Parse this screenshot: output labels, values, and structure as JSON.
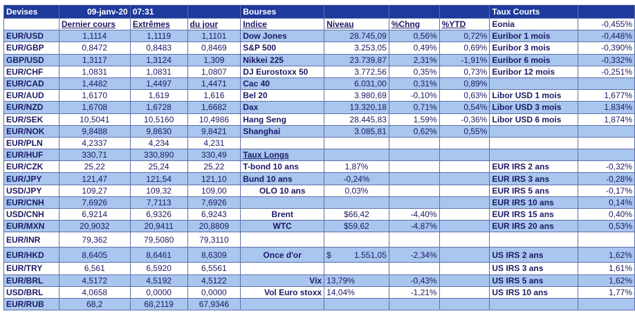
{
  "header": {
    "devises": "Devises",
    "date": "09-janv-20",
    "time": "07:31",
    "bourses": "Bourses",
    "taux_courts": "Taux Courts"
  },
  "colheads": {
    "dernier": "Dernier cours",
    "extremes": "Extrêmes",
    "du_jour": "du jour",
    "indice": "Indice",
    "niveau": "Niveau",
    "chng": "%Chng",
    "ytd": "%YTD",
    "eonia": "Eonia",
    "eonia_val": "-0,455%"
  },
  "fx": [
    {
      "pair": "EUR/USD",
      "last": "1,1114",
      "high": "1,1119",
      "low": "1,1101"
    },
    {
      "pair": "EUR/GBP",
      "last": "0,8472",
      "high": "0,8483",
      "low": "0,8469"
    },
    {
      "pair": "GBP/USD",
      "last": "1,3117",
      "high": "1,3124",
      "low": "1,309"
    },
    {
      "pair": "EUR/CHF",
      "last": "1,0831",
      "high": "1,0831",
      "low": "1,0807"
    },
    {
      "pair": "EUR/CAD",
      "last": "1,4482",
      "high": "1,4497",
      "low": "1,4471"
    },
    {
      "pair": "EUR/AUD",
      "last": "1,6170",
      "high": "1,619",
      "low": "1,616"
    },
    {
      "pair": "EUR/NZD",
      "last": "1,6708",
      "high": "1,6728",
      "low": "1,6682"
    },
    {
      "pair": "EUR/SEK",
      "last": "10,5041",
      "high": "10,5160",
      "low": "10,4986"
    },
    {
      "pair": "EUR/NOK",
      "last": "9,8488",
      "high": "9,8630",
      "low": "9,8421"
    },
    {
      "pair": "EUR/PLN",
      "last": "4,2337",
      "high": "4,234",
      "low": "4,231"
    },
    {
      "pair": "EUR/HUF",
      "last": "330,71",
      "high": "330,890",
      "low": "330,49"
    },
    {
      "pair": "EUR/CZK",
      "last": "25,22",
      "high": "25,24",
      "low": "25,22"
    },
    {
      "pair": "EUR/JPY",
      "last": "121,47",
      "high": "121,54",
      "low": "121,10"
    },
    {
      "pair": "USD/JPY",
      "last": "109,27",
      "high": "109,32",
      "low": "109,00"
    },
    {
      "pair": "EUR/CNH",
      "last": "7,6926",
      "high": "7,7113",
      "low": "7,6926"
    },
    {
      "pair": "USD/CNH",
      "last": "6,9214",
      "high": "6,9326",
      "low": "6,9243"
    },
    {
      "pair": "EUR/MXN",
      "last": "20,9032",
      "high": "20,9411",
      "low": "20,8809"
    },
    {
      "pair": "EUR/INR",
      "last": "79,362",
      "high": "79,5080",
      "low": "79,3110"
    },
    {
      "pair": "EUR/HKD",
      "last": "8,6405",
      "high": "8,6461",
      "low": "8,6309"
    },
    {
      "pair": "EUR/TRY",
      "last": "6,561",
      "high": "6,5920",
      "low": "6,5561"
    },
    {
      "pair": "EUR/BRL",
      "last": "4,5172",
      "high": "4,5192",
      "low": "4,5122"
    },
    {
      "pair": "USD/BRL",
      "last": "4,0658",
      "high": "0,0000",
      "low": "0,0000"
    },
    {
      "pair": "EUR/RUB",
      "last": "68,2",
      "high": "68,2119",
      "low": "67,9346"
    }
  ],
  "bourses": [
    {
      "name": "Dow Jones",
      "level": "28.745,09",
      "chng": "0,56%",
      "ytd": "0,72%"
    },
    {
      "name": "S&P 500",
      "level": "3.253,05",
      "chng": "0,49%",
      "ytd": "0,69%"
    },
    {
      "name": "Nikkei 225",
      "level": "23.739,87",
      "chng": "2,31%",
      "ytd": "-1,91%"
    },
    {
      "name": "DJ Eurostoxx 50",
      "level": "3.772,56",
      "chng": "0,35%",
      "ytd": "0,73%"
    },
    {
      "name": "Cac 40",
      "level": "6.031,00",
      "chng": "0,31%",
      "ytd": "0,89%"
    },
    {
      "name": "Bel 20",
      "level": "3.980,69",
      "chng": "-0,10%",
      "ytd": "0,63%"
    },
    {
      "name": "Dax",
      "level": "13.320,18",
      "chng": "0,71%",
      "ytd": "0,54%"
    },
    {
      "name": "Hang Seng",
      "level": "28.445,83",
      "chng": "1,59%",
      "ytd": "-0,36%"
    },
    {
      "name": "Shanghai",
      "level": "3.085,81",
      "chng": "0,62%",
      "ytd": "0,55%"
    }
  ],
  "taux_longs": {
    "title": "Taux Longs",
    "rows": [
      {
        "name": "T-bond 10 ans",
        "value": "1,87%"
      },
      {
        "name": "Bund 10 ans",
        "value": "-0,24%"
      },
      {
        "name": "OLO 10 ans",
        "value": "0,03%"
      }
    ]
  },
  "commodities": [
    {
      "name": "Brent",
      "value": "$66,42",
      "chng": "-4,40%"
    },
    {
      "name": "WTC",
      "value": "$59,62",
      "chng": "-4,87%"
    }
  ],
  "gold": {
    "name": "Once d'or",
    "currency": "$",
    "value": "1.551,05",
    "chng": "-2,34%"
  },
  "vol": [
    {
      "name": "Vix",
      "value": "13,79%",
      "chng": "-0,43%"
    },
    {
      "name": "Vol Euro stoxx",
      "value": "14,04%",
      "chng": "-1,21%"
    }
  ],
  "euribor": [
    {
      "name": "Euribor 1 mois",
      "value": "-0,448%"
    },
    {
      "name": "Euribor 3 mois",
      "value": "-0,390%"
    },
    {
      "name": "Euribor 6 mois",
      "value": "-0,332%"
    },
    {
      "name": "Euribor 12 mois",
      "value": "-0,251%"
    }
  ],
  "libor": [
    {
      "name": "Libor USD 1 mois",
      "value": "1,677%"
    },
    {
      "name": "Libor USD 3 mois",
      "value": "1,834%"
    },
    {
      "name": "Libor USD 6 mois",
      "value": "1,874%"
    }
  ],
  "eur_irs": [
    {
      "name": "EUR IRS 2 ans",
      "value": "-0,32%"
    },
    {
      "name": "EUR IRS 3 ans",
      "value": "-0,28%"
    },
    {
      "name": "EUR IRS 5 ans",
      "value": "-0,17%"
    },
    {
      "name": "EUR IRS 10 ans",
      "value": "0,14%"
    },
    {
      "name": "EUR IRS 15 ans",
      "value": "0,40%"
    },
    {
      "name": "EUR IRS 20 ans",
      "value": "0,53%"
    }
  ],
  "us_irs": [
    {
      "name": "US IRS 2 ans",
      "value": "1,62%"
    },
    {
      "name": "US IRS 3 ans",
      "value": "1,61%"
    },
    {
      "name": "US IRS 5 ans",
      "value": "1,62%"
    },
    {
      "name": "US IRS 10 ans",
      "value": "1,77%"
    }
  ],
  "colors": {
    "header_bg": "#1e3a9c",
    "row_blue": "#a9c6ee",
    "row_white": "#ffffff",
    "text": "#1a1a66",
    "grid": "#5e6ea8"
  }
}
